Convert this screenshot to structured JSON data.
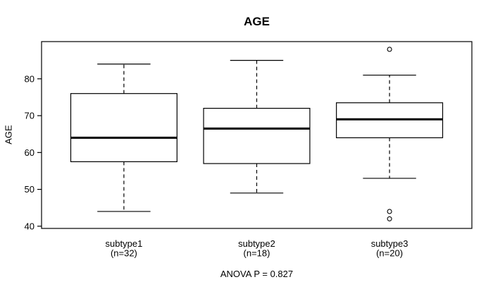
{
  "chart_data": {
    "type": "boxplot",
    "title": "AGE",
    "ylabel": "AGE",
    "xlabel": "",
    "annotation": "ANOVA P = 0.827",
    "categories": [
      "subtype1",
      "subtype2",
      "subtype3"
    ],
    "category_sublabels": [
      "(n=32)",
      "(n=18)",
      "(n=20)"
    ],
    "y_ticks": [
      40,
      50,
      60,
      70,
      80
    ],
    "ylim": [
      39.4,
      90.1
    ],
    "grid": false,
    "legend": false,
    "series": [
      {
        "name": "subtype1",
        "n": 32,
        "whisker_low": 44,
        "q1": 57.5,
        "median": 64,
        "q3": 76,
        "whisker_high": 84,
        "outliers": []
      },
      {
        "name": "subtype2",
        "n": 18,
        "whisker_low": 49,
        "q1": 57,
        "median": 66.5,
        "q3": 72,
        "whisker_high": 85,
        "outliers": []
      },
      {
        "name": "subtype3",
        "n": 20,
        "whisker_low": 53,
        "q1": 64,
        "median": 69,
        "q3": 73.5,
        "whisker_high": 81,
        "outliers": [
          88,
          44,
          42
        ]
      }
    ],
    "colors": {
      "line": "#000000",
      "box_fill": "#ffffff",
      "background": "#ffffff"
    }
  }
}
